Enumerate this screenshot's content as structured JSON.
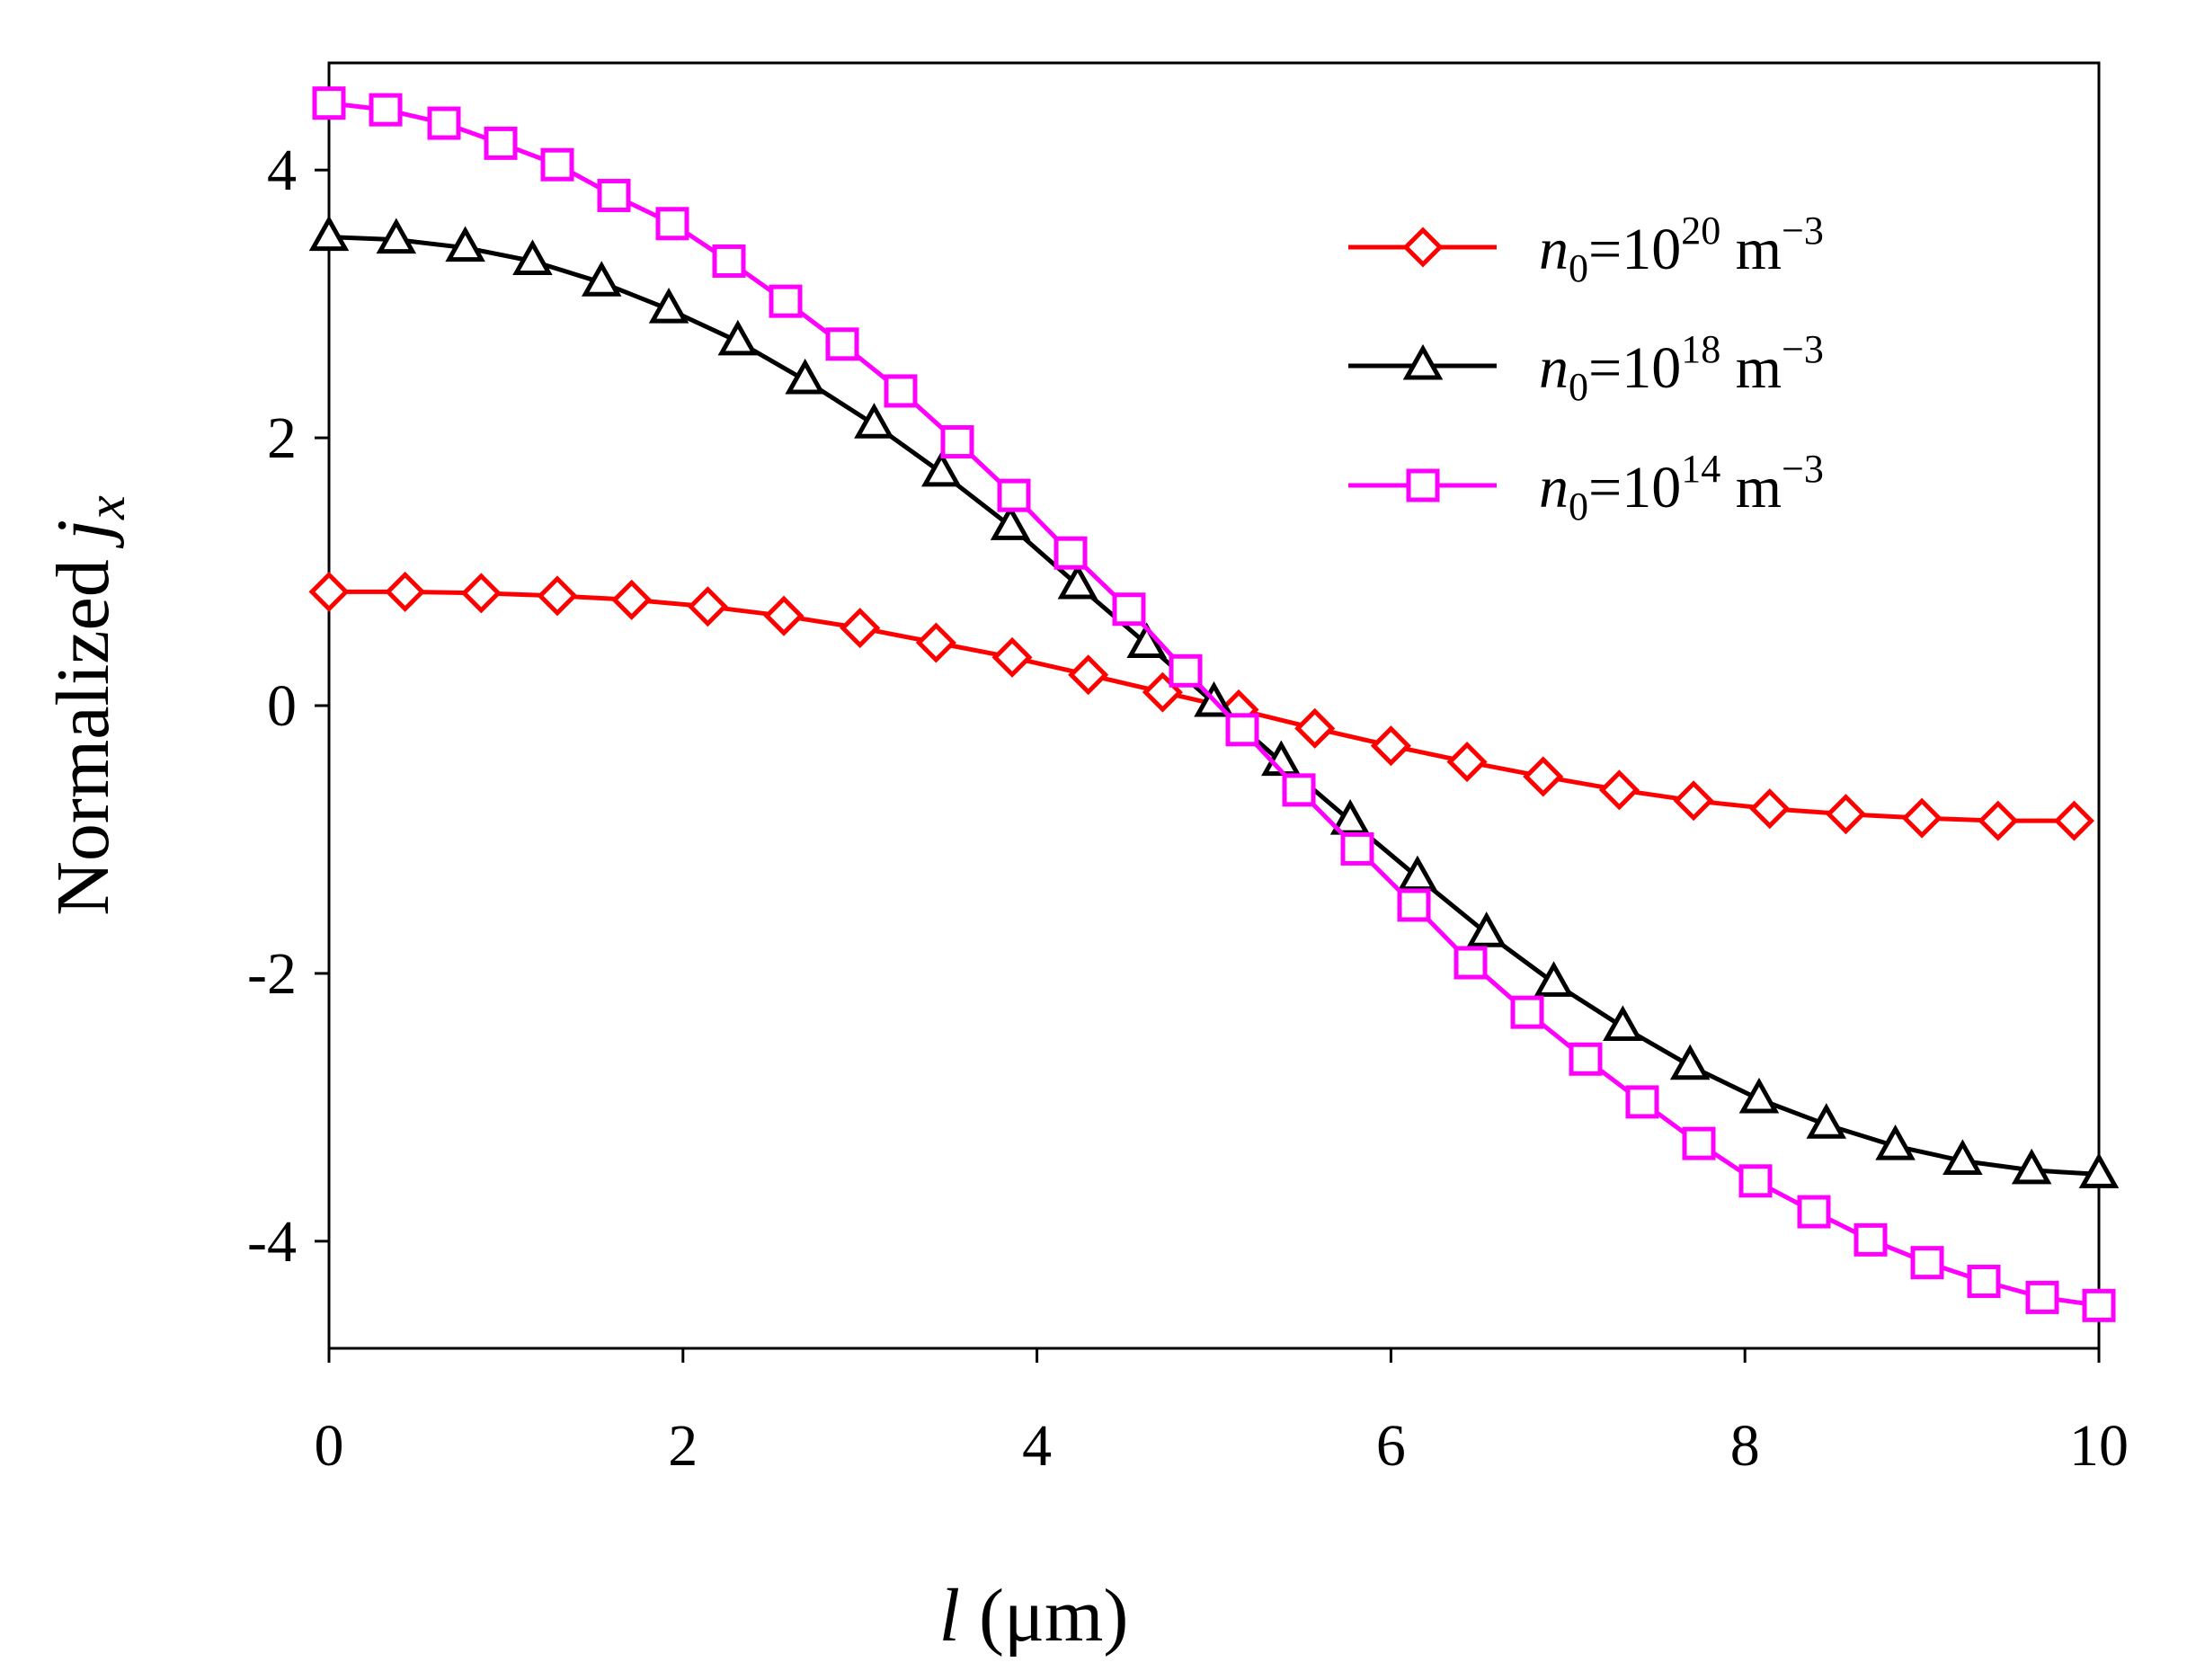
{
  "chart_data": {
    "type": "line",
    "xlabel": {
      "italic": "l",
      "rest": " (μm)"
    },
    "ylabel": {
      "plain": "Normalized ",
      "italic": "j",
      "sub": "x"
    },
    "xlim": [
      0,
      10
    ],
    "ylim": [
      -4.8,
      4.8
    ],
    "xticks": [
      0,
      2,
      4,
      6,
      8,
      10
    ],
    "yticks": [
      4,
      2,
      0,
      -2,
      -4
    ],
    "ytick_labels": [
      "4",
      "2",
      "0",
      "-2",
      "-4"
    ],
    "legend_position": "top-right",
    "series": [
      {
        "name": "n0=10^20 m^-3",
        "label": {
          "n": "n",
          "sub": "0",
          "eq": "=10",
          "exp": "20",
          "unit": " m",
          "unit_exp": "−3"
        },
        "color": "#ff0000",
        "marker": "diamond",
        "x": [
          0,
          0.43,
          0.86,
          1.29,
          1.71,
          2.14,
          2.57,
          3.0,
          3.43,
          3.86,
          4.29,
          4.71,
          5.14,
          5.57,
          6.0,
          6.43,
          6.86,
          7.29,
          7.71,
          8.14,
          8.57,
          9.0,
          9.43,
          9.86
        ],
        "y": [
          0.85,
          0.85,
          0.84,
          0.82,
          0.79,
          0.74,
          0.67,
          0.58,
          0.47,
          0.36,
          0.23,
          0.1,
          -0.03,
          -0.17,
          -0.3,
          -0.42,
          -0.53,
          -0.63,
          -0.71,
          -0.77,
          -0.81,
          -0.84,
          -0.86,
          -0.86
        ]
      },
      {
        "name": "n0=10^18 m^-3",
        "label": {
          "n": "n",
          "sub": "0",
          "eq": "=10",
          "exp": "18",
          "unit": " m",
          "unit_exp": "−3"
        },
        "color": "#000000",
        "marker": "triangle",
        "x": [
          0,
          0.38,
          0.77,
          1.15,
          1.54,
          1.92,
          2.31,
          2.69,
          3.08,
          3.46,
          3.85,
          4.23,
          4.62,
          5.0,
          5.38,
          5.77,
          6.15,
          6.54,
          6.92,
          7.31,
          7.69,
          8.08,
          8.46,
          8.85,
          9.23,
          9.62,
          10.0
        ],
        "y": [
          3.5,
          3.48,
          3.42,
          3.32,
          3.16,
          2.96,
          2.72,
          2.43,
          2.1,
          1.74,
          1.34,
          0.9,
          0.46,
          0.02,
          -0.42,
          -0.86,
          -1.28,
          -1.7,
          -2.07,
          -2.4,
          -2.69,
          -2.94,
          -3.13,
          -3.29,
          -3.4,
          -3.47,
          -3.5
        ]
      },
      {
        "name": "n0=10^14 m^-3",
        "label": {
          "n": "n",
          "sub": "0",
          "eq": "=10",
          "exp": "14",
          "unit": " m",
          "unit_exp": "−3"
        },
        "color": "#ff00ff",
        "marker": "square",
        "x": [
          0,
          0.32,
          0.65,
          0.97,
          1.29,
          1.61,
          1.94,
          2.26,
          2.58,
          2.9,
          3.23,
          3.55,
          3.87,
          4.19,
          4.52,
          4.84,
          5.16,
          5.48,
          5.81,
          6.13,
          6.45,
          6.77,
          7.1,
          7.42,
          7.74,
          8.06,
          8.39,
          8.71,
          9.03,
          9.35,
          9.68,
          10.0
        ],
        "y": [
          4.5,
          4.45,
          4.35,
          4.2,
          4.04,
          3.81,
          3.6,
          3.32,
          3.02,
          2.7,
          2.35,
          1.97,
          1.57,
          1.14,
          0.72,
          0.26,
          -0.18,
          -0.63,
          -1.07,
          -1.49,
          -1.92,
          -2.29,
          -2.64,
          -2.96,
          -3.27,
          -3.55,
          -3.78,
          -3.99,
          -4.16,
          -4.3,
          -4.42,
          -4.48
        ]
      }
    ]
  }
}
